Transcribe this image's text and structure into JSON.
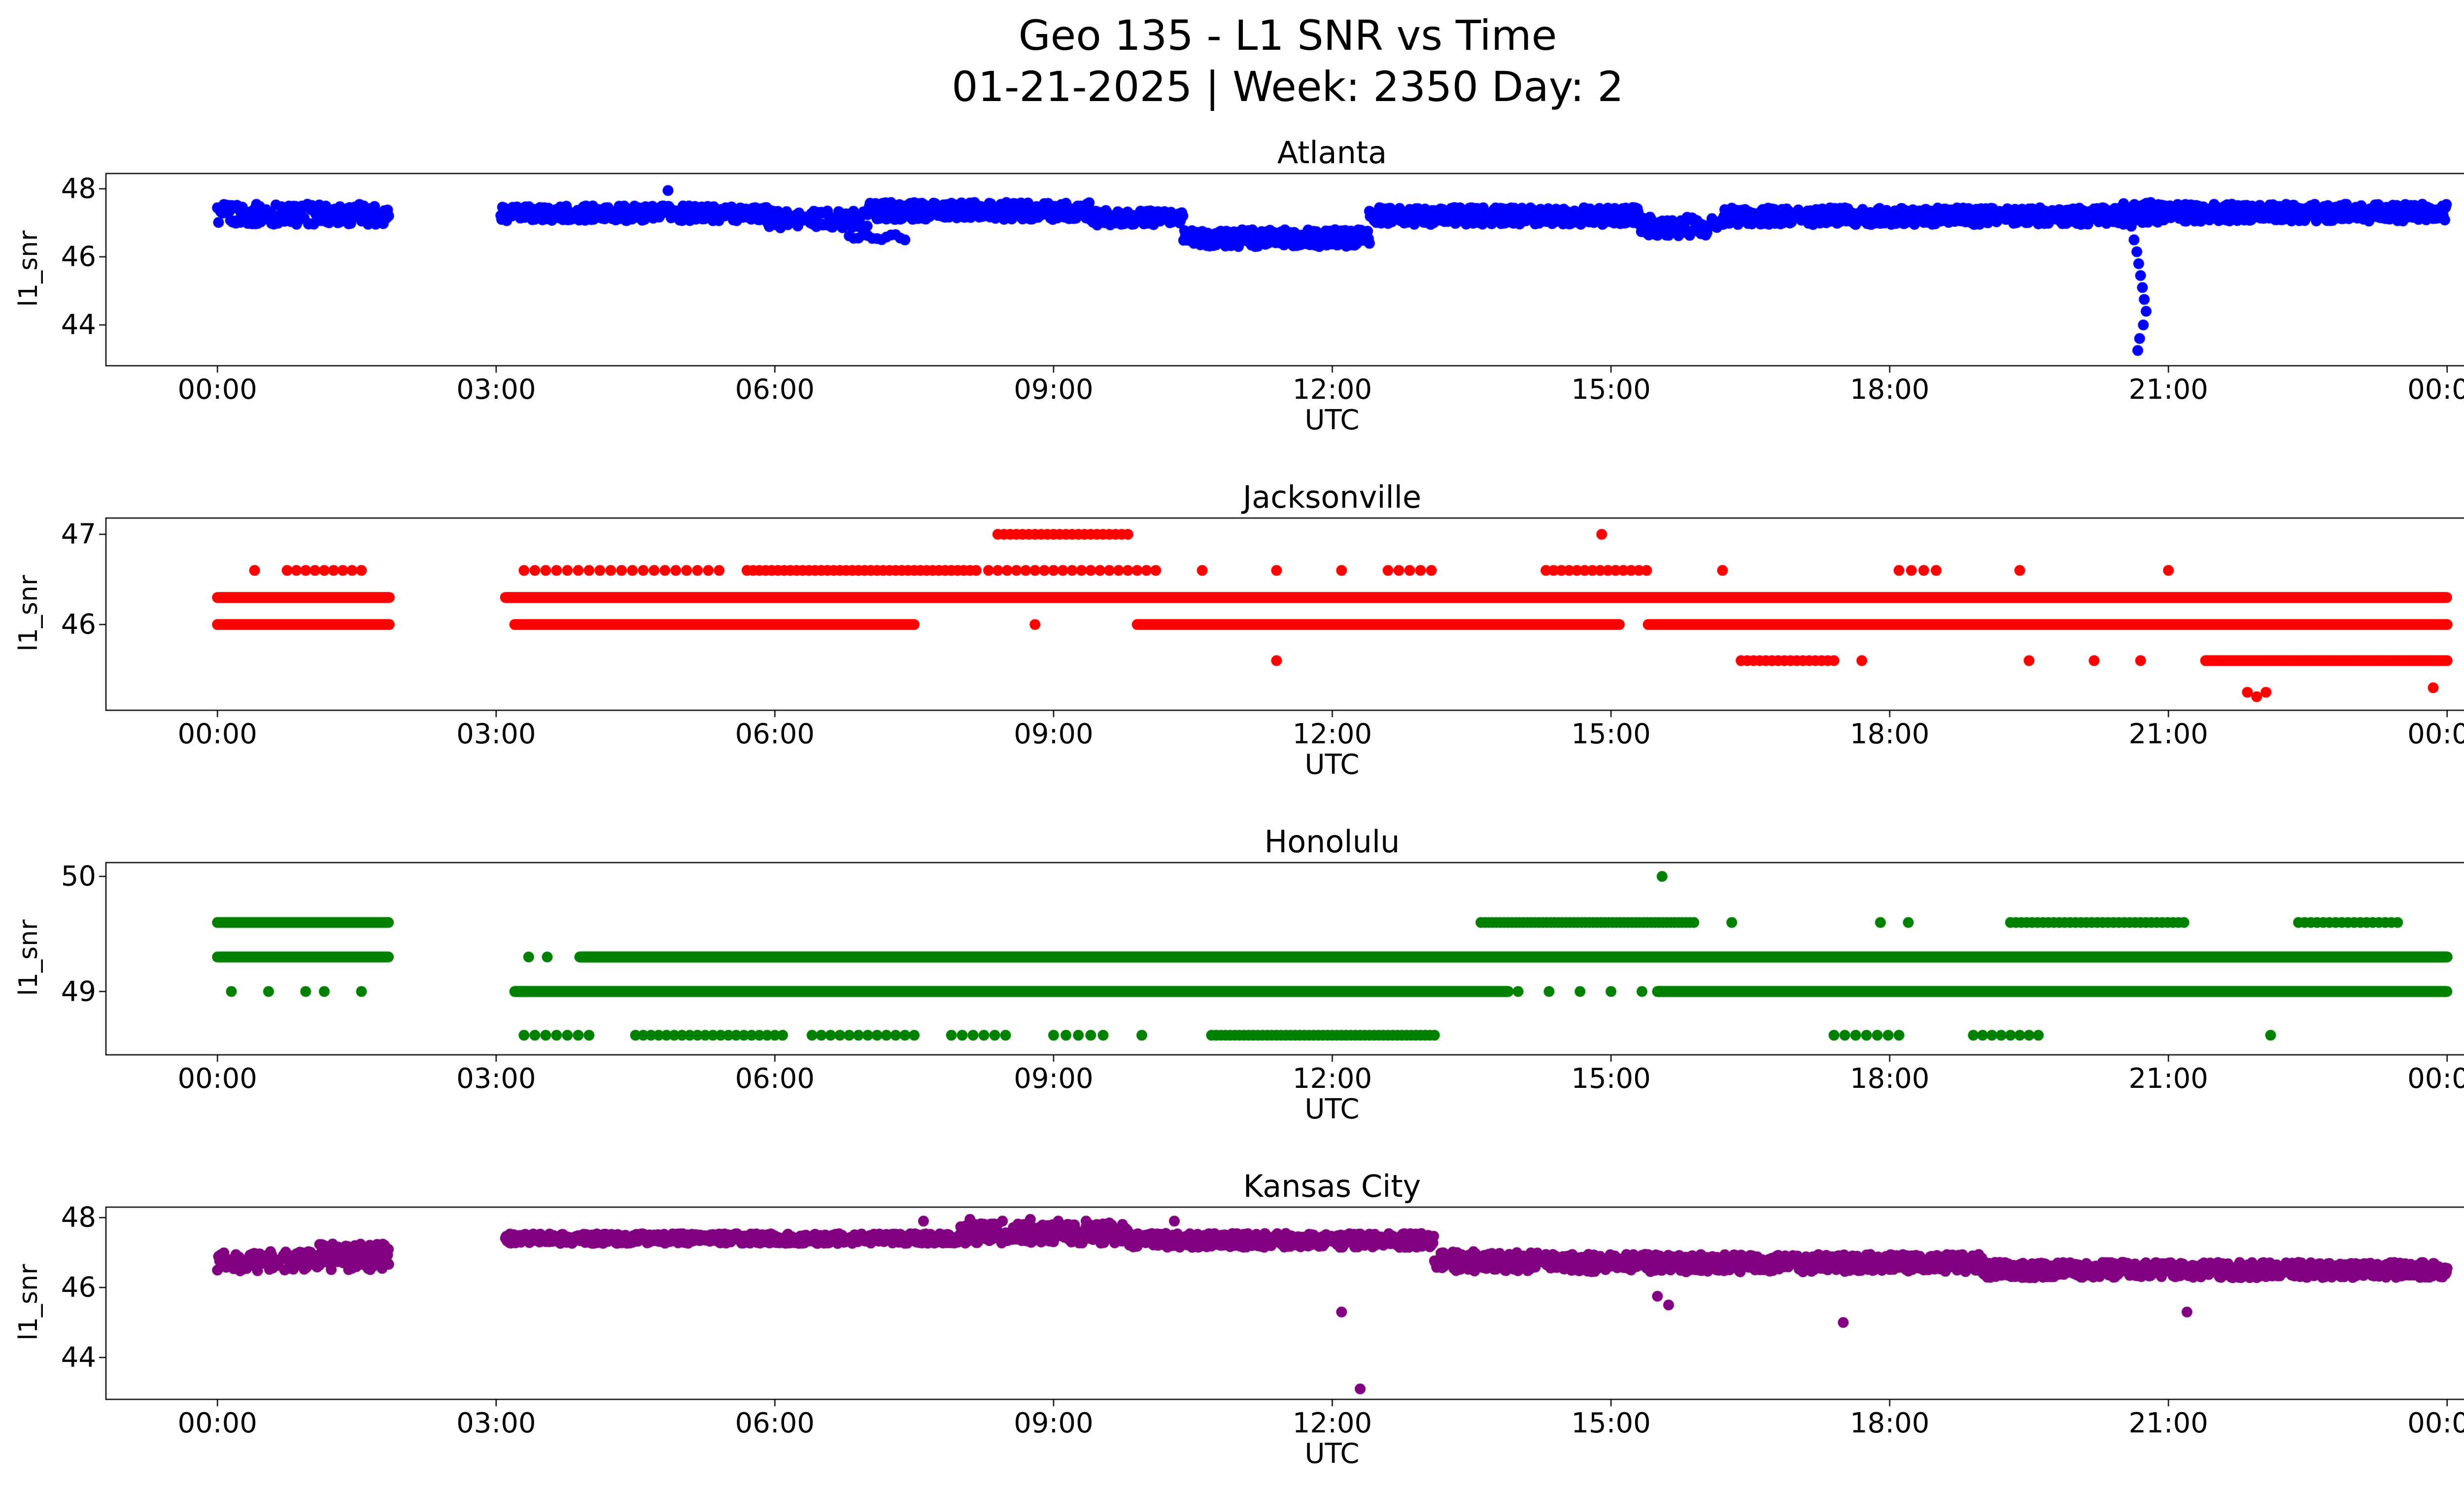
{
  "figure": {
    "title": "Geo 135 - L1 SNR vs Time",
    "subtitle": "01-21-2025 | Week: 2350 Day: 2",
    "background": "#ffffff"
  },
  "axes": {
    "xlim": [
      -1.2,
      25.2
    ],
    "xticks": [
      0,
      3,
      6,
      9,
      12,
      15,
      18,
      21,
      24
    ],
    "xtick_labels": [
      "00:00",
      "03:00",
      "06:00",
      "09:00",
      "12:00",
      "15:00",
      "18:00",
      "21:00",
      "00:00"
    ]
  },
  "chart_data": [
    {
      "type": "scatter",
      "title": "Atlanta",
      "color": "#0000ff",
      "xlabel": "UTC",
      "ylabel": "l1_snr",
      "ylim": [
        42.8,
        48.45
      ],
      "yticks": [
        44,
        46,
        48
      ],
      "marker_radius": 11,
      "runs": [
        [
          0.0,
          1.85,
          47.25,
          0.3,
          0.7
        ],
        [
          3.05,
          6.0,
          47.28,
          0.22,
          0.55
        ],
        [
          5.9,
          7.0,
          47.1,
          0.25,
          0.8
        ],
        [
          6.8,
          7.4,
          46.6,
          0.1,
          3.0
        ],
        [
          7.0,
          9.4,
          47.35,
          0.25,
          0.5
        ],
        [
          9.4,
          10.4,
          47.15,
          0.22,
          0.7
        ],
        [
          10.4,
          12.4,
          46.55,
          0.25,
          0.6
        ],
        [
          12.4,
          15.3,
          47.2,
          0.25,
          0.5
        ],
        [
          15.3,
          16.2,
          46.9,
          0.28,
          0.8
        ],
        [
          16.2,
          20.55,
          47.2,
          0.25,
          0.5
        ],
        [
          20.5,
          20.9,
          47.3,
          0.3,
          0.35
        ],
        [
          20.85,
          24.0,
          47.3,
          0.25,
          0.5
        ]
      ],
      "points": [
        [
          4.85,
          47.95
        ],
        [
          20.6,
          46.9
        ],
        [
          20.63,
          46.5
        ],
        [
          20.66,
          46.15
        ],
        [
          20.68,
          45.8
        ],
        [
          20.7,
          45.45
        ],
        [
          20.72,
          45.1
        ],
        [
          20.74,
          44.75
        ],
        [
          20.76,
          44.4
        ],
        [
          20.73,
          44.0
        ],
        [
          20.69,
          43.6
        ],
        [
          20.67,
          43.25
        ]
      ]
    },
    {
      "type": "scatter",
      "title": "Jacksonville",
      "color": "#ff0000",
      "xlabel": "UTC",
      "ylabel": "l1_snr",
      "ylim": [
        45.05,
        47.18
      ],
      "yticks": [
        46,
        47
      ],
      "marker_radius": 11,
      "runs": [
        [
          0.0,
          1.85,
          46.3,
          0,
          0.5
        ],
        [
          0.0,
          1.85,
          46.0,
          0,
          0.6
        ],
        [
          0.75,
          1.55,
          46.6,
          0,
          6
        ],
        [
          3.1,
          24.0,
          46.3,
          0,
          0.45
        ],
        [
          3.2,
          7.5,
          46.0,
          0,
          0.55
        ],
        [
          9.9,
          15.1,
          46.0,
          0,
          0.6
        ],
        [
          15.4,
          24.0,
          46.0,
          0,
          0.5
        ],
        [
          3.3,
          5.5,
          46.6,
          0,
          7
        ],
        [
          5.7,
          8.2,
          46.6,
          0,
          4
        ],
        [
          8.3,
          10.2,
          46.6,
          0,
          6
        ],
        [
          12.6,
          13.1,
          46.6,
          0,
          7
        ],
        [
          14.3,
          15.4,
          46.6,
          0,
          5
        ],
        [
          18.1,
          18.6,
          46.6,
          0,
          8
        ],
        [
          8.4,
          9.8,
          47.0,
          0,
          4
        ],
        [
          16.4,
          17.4,
          45.6,
          0,
          4
        ],
        [
          21.4,
          24.0,
          45.6,
          0,
          1.2
        ]
      ],
      "points": [
        [
          0.4,
          46.6
        ],
        [
          10.6,
          46.6
        ],
        [
          11.4,
          46.6
        ],
        [
          12.1,
          46.6
        ],
        [
          16.2,
          46.6
        ],
        [
          19.4,
          46.6
        ],
        [
          21.0,
          46.6
        ],
        [
          14.9,
          47.0
        ],
        [
          8.8,
          46.0
        ],
        [
          11.4,
          45.6
        ],
        [
          17.7,
          45.6
        ],
        [
          19.5,
          45.6
        ],
        [
          20.2,
          45.6
        ],
        [
          20.7,
          45.6
        ],
        [
          21.85,
          45.25
        ],
        [
          21.95,
          45.2
        ],
        [
          22.05,
          45.25
        ],
        [
          23.85,
          45.3
        ]
      ]
    },
    {
      "type": "scatter",
      "title": "Honolulu",
      "color": "#008000",
      "xlabel": "UTC",
      "ylabel": "l1_snr",
      "ylim": [
        48.45,
        50.12
      ],
      "yticks": [
        49,
        50
      ],
      "marker_radius": 11,
      "runs": [
        [
          0.0,
          1.85,
          49.6,
          0,
          1.2
        ],
        [
          0.0,
          1.85,
          49.3,
          0,
          0.8
        ],
        [
          3.9,
          24.0,
          49.3,
          0,
          0.45
        ],
        [
          3.2,
          13.9,
          49.0,
          0,
          0.45
        ],
        [
          14.0,
          15.5,
          49.0,
          0,
          20
        ],
        [
          15.5,
          24.0,
          49.0,
          0,
          0.45
        ],
        [
          13.6,
          15.9,
          49.6,
          0,
          2.5
        ],
        [
          19.3,
          21.2,
          49.6,
          0,
          3.5
        ],
        [
          22.4,
          23.5,
          49.6,
          0,
          4
        ],
        [
          3.3,
          4.1,
          48.62,
          0,
          7
        ],
        [
          4.5,
          6.1,
          48.62,
          0,
          5
        ],
        [
          6.4,
          7.6,
          48.62,
          0,
          6
        ],
        [
          7.9,
          8.6,
          48.62,
          0,
          7
        ],
        [
          9.0,
          9.6,
          48.62,
          0,
          8
        ],
        [
          10.7,
          13.1,
          48.62,
          0,
          3
        ],
        [
          17.4,
          18.1,
          48.62,
          0,
          7
        ],
        [
          18.9,
          19.6,
          48.62,
          0,
          6
        ]
      ],
      "points": [
        [
          0.15,
          49.0
        ],
        [
          0.55,
          49.0
        ],
        [
          0.95,
          49.0
        ],
        [
          1.15,
          49.0
        ],
        [
          1.55,
          49.0
        ],
        [
          3.35,
          49.3
        ],
        [
          3.55,
          49.3
        ],
        [
          9.95,
          48.62
        ],
        [
          22.1,
          48.62
        ],
        [
          15.55,
          50.0
        ],
        [
          16.3,
          49.6
        ],
        [
          17.9,
          49.6
        ],
        [
          18.2,
          49.6
        ]
      ]
    },
    {
      "type": "scatter",
      "title": "Kansas City",
      "color": "#800080",
      "xlabel": "UTC",
      "ylabel": "l1_snr",
      "ylim": [
        42.8,
        48.3
      ],
      "yticks": [
        44,
        46,
        48
      ],
      "marker_radius": 11,
      "runs": [
        [
          0.0,
          1.85,
          46.75,
          0.28,
          0.7
        ],
        [
          1.1,
          1.85,
          47.15,
          0.1,
          1.2
        ],
        [
          3.1,
          8.0,
          47.4,
          0.14,
          0.5
        ],
        [
          8.0,
          9.8,
          47.55,
          0.28,
          0.5
        ],
        [
          9.8,
          13.1,
          47.35,
          0.2,
          0.5
        ],
        [
          13.1,
          14.3,
          46.75,
          0.28,
          0.7
        ],
        [
          14.3,
          19.0,
          46.7,
          0.25,
          0.5
        ],
        [
          19.0,
          24.0,
          46.5,
          0.22,
          0.5
        ]
      ],
      "points": [
        [
          7.6,
          47.9
        ],
        [
          8.1,
          47.95
        ],
        [
          8.45,
          47.9
        ],
        [
          8.75,
          47.95
        ],
        [
          9.05,
          47.9
        ],
        [
          9.35,
          47.9
        ],
        [
          9.6,
          47.85
        ],
        [
          10.3,
          47.9
        ],
        [
          12.1,
          45.3
        ],
        [
          12.3,
          43.1
        ],
        [
          15.5,
          45.75
        ],
        [
          15.62,
          45.5
        ],
        [
          17.5,
          45.0
        ],
        [
          21.2,
          45.3
        ]
      ]
    }
  ]
}
